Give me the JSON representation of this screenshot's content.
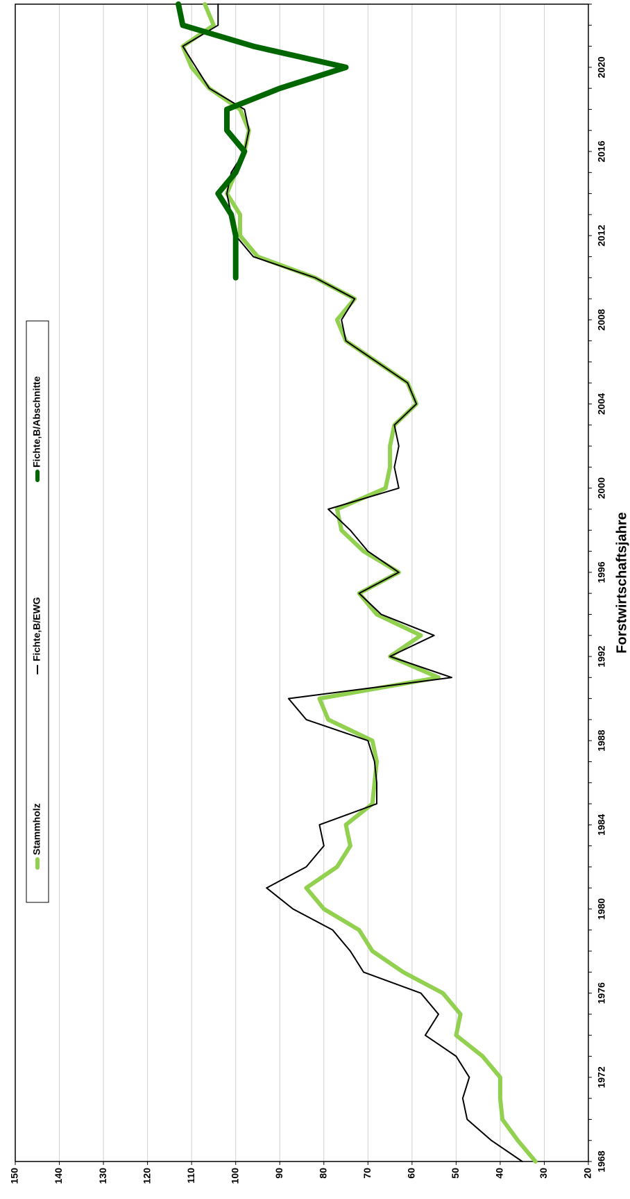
{
  "chart_data": {
    "type": "line",
    "orientation": "rotated-90-clockwise",
    "xlabel": "Forstwirtschaftsjahre",
    "ylabel": "",
    "x_range": [
      1968,
      2023
    ],
    "ylim": [
      20,
      150
    ],
    "y_ticks": [
      20,
      30,
      40,
      50,
      60,
      70,
      80,
      90,
      100,
      110,
      120,
      130,
      140,
      150
    ],
    "x_ticks": [
      1968,
      1972,
      1976,
      1980,
      1984,
      1988,
      1992,
      1996,
      2000,
      2004,
      2008,
      2012,
      2016,
      2020
    ],
    "grid": true,
    "legend_position": "top",
    "series": [
      {
        "name": "Stammholz",
        "color": "#92d050",
        "width": 6,
        "x": [
          1968,
          1969,
          1970,
          1971,
          1972,
          1973,
          1974,
          1975,
          1976,
          1977,
          1978,
          1979,
          1980,
          1981,
          1982,
          1983,
          1984,
          1985,
          1986,
          1987,
          1988,
          1989,
          1990,
          1991,
          1992,
          1993,
          1994,
          1995,
          1996,
          1997,
          1998,
          1999,
          2000,
          2001,
          2002,
          2003,
          2004,
          2005,
          2006,
          2007,
          2008,
          2009,
          2010,
          2011,
          2012,
          2013,
          2014,
          2015,
          2016,
          2017,
          2018,
          2019,
          2020,
          2021,
          2022,
          2023
        ],
        "values": [
          32,
          36,
          39.5,
          40,
          40,
          44,
          50,
          49,
          53,
          62,
          69,
          72,
          80,
          84,
          77,
          74,
          75,
          69,
          68.5,
          68,
          69,
          79,
          81,
          54,
          65,
          58,
          68,
          72,
          63,
          71,
          76,
          77,
          66,
          65,
          65,
          64,
          59,
          61,
          68,
          75,
          77,
          73,
          82,
          95,
          99,
          99,
          102,
          100,
          98,
          97,
          99,
          106,
          110,
          112,
          105,
          107
        ],
        "labels_shown": false
      },
      {
        "name": "Fichte,B/EWG",
        "color": "#000000",
        "width": 2,
        "x": [
          1968,
          1969,
          1970,
          1971,
          1972,
          1973,
          1974,
          1975,
          1976,
          1977,
          1978,
          1979,
          1980,
          1981,
          1982,
          1983,
          1984,
          1985,
          1986,
          1987,
          1988,
          1989,
          1990,
          1991,
          1992,
          1993,
          1994,
          1995,
          1996,
          1997,
          1998,
          1999,
          2000,
          2001,
          2002,
          2003,
          2004,
          2005,
          2006,
          2007,
          2008,
          2009,
          2010,
          2011,
          2012,
          2013,
          2014,
          2015,
          2016,
          2017,
          2018,
          2019,
          2020,
          2021,
          2022,
          2023
        ],
        "values": [
          35,
          42,
          47.5,
          48.5,
          47,
          50,
          57,
          54,
          58,
          71,
          74,
          78,
          87,
          93,
          84,
          80,
          81,
          68,
          68,
          68.5,
          70,
          84,
          88,
          51,
          65,
          55,
          67,
          72,
          63,
          70,
          74,
          79,
          63,
          64,
          63,
          64,
          59,
          61,
          68,
          75,
          76,
          73,
          82,
          96,
          100,
          101,
          102,
          101,
          98,
          97,
          98,
          106,
          109,
          112,
          104,
          104
        ]
      },
      {
        "name": "Fichte,B/Abschnitte",
        "color": "#006600",
        "width": 8,
        "x": [
          2010,
          2011,
          2012,
          2013,
          2014,
          2015,
          2016,
          2017,
          2018,
          2019,
          2020,
          2021,
          2022,
          2023
        ],
        "values": [
          100,
          100,
          100,
          101,
          104,
          100,
          98,
          102,
          102,
          90,
          75,
          96,
          112,
          113
        ]
      }
    ]
  }
}
